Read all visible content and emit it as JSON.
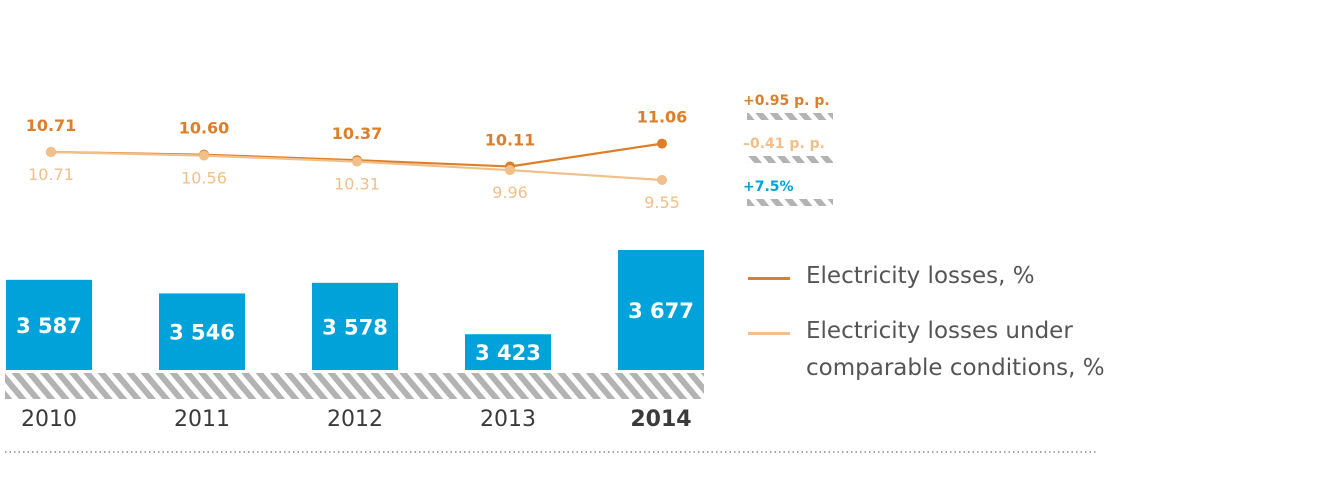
{
  "colors": {
    "bar": "#00a3d9",
    "losses": "#dd7f2a",
    "losses_comparable": "#f0bf8a",
    "hatch": "#b3b3b3",
    "year_highlight": "#0d78b8",
    "dotted_rule": "#8a8a8a"
  },
  "chart_data": {
    "type": "bar",
    "categories": [
      "2010",
      "2011",
      "2012",
      "2013",
      "2014"
    ],
    "highlight_category": "2014",
    "values": [
      3587,
      3546,
      3578,
      3423,
      3677
    ],
    "value_labels": [
      "3 587",
      "3 546",
      "3 578",
      "3 423",
      "3 677"
    ],
    "lines": [
      {
        "name": "Electricity losses, %",
        "values": [
          10.71,
          10.6,
          10.37,
          10.11,
          11.06
        ],
        "labels": [
          "10.71",
          "10.60",
          "10.37",
          "10.11",
          "11.06"
        ]
      },
      {
        "name": "Electricity losses under comparable conditions, %",
        "values": [
          10.71,
          10.56,
          10.31,
          9.96,
          9.55
        ],
        "labels": [
          "10.71",
          "10.56",
          "10.31",
          "9.96",
          "9.55"
        ]
      }
    ],
    "deltas": [
      {
        "text": "+0.95 p. p.",
        "series": "losses"
      },
      {
        "text": "–0.41 p. p.",
        "series": "losses_comparable"
      },
      {
        "text": "+7.5%",
        "series": "bar"
      }
    ]
  },
  "legend": {
    "losses_line1": "Electricity losses, %",
    "comparable_line1": "Electricity losses under",
    "comparable_line2": "comparable conditions, %"
  }
}
